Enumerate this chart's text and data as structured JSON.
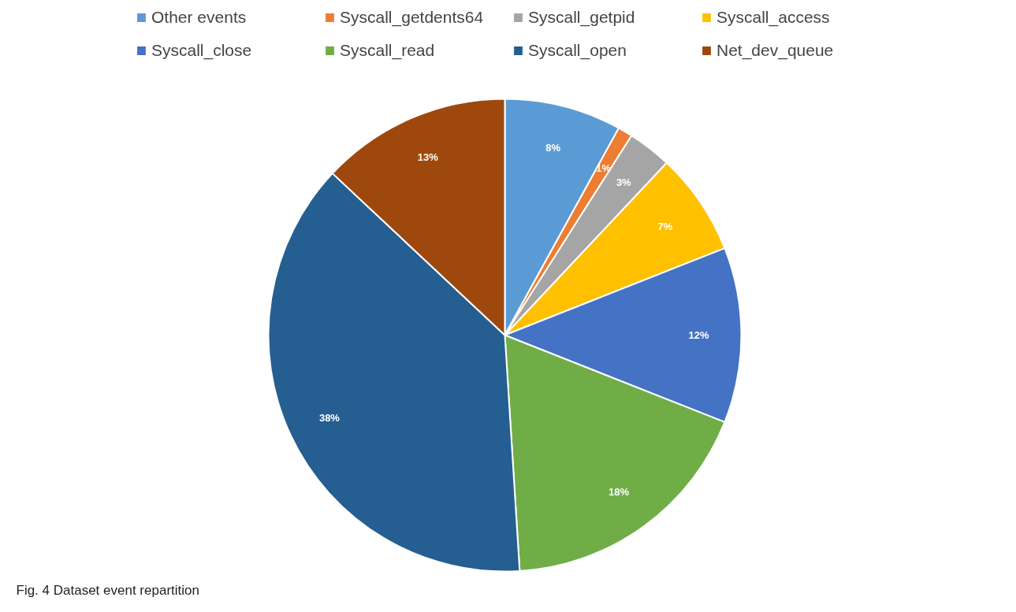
{
  "chart_data": {
    "type": "pie",
    "categories": [
      "Other events",
      "Syscall_getdents64",
      "Syscall_getpid",
      "Syscall_access",
      "Syscall_close",
      "Syscall_read",
      "Syscall_open",
      "Net_dev_queue"
    ],
    "values": [
      8,
      1,
      3,
      7,
      12,
      18,
      38,
      13
    ],
    "colors": [
      "#5b9bd5",
      "#ed7d31",
      "#a5a5a5",
      "#ffc000",
      "#4472c4",
      "#70ad47",
      "#255e91",
      "#9e480e"
    ],
    "value_labels": [
      "8%",
      "1%",
      "3%",
      "7%",
      "12%",
      "18%",
      "38%",
      "13%"
    ],
    "legend": "top",
    "annotations": [
      "Fig. 4 Dataset event repartition"
    ]
  }
}
